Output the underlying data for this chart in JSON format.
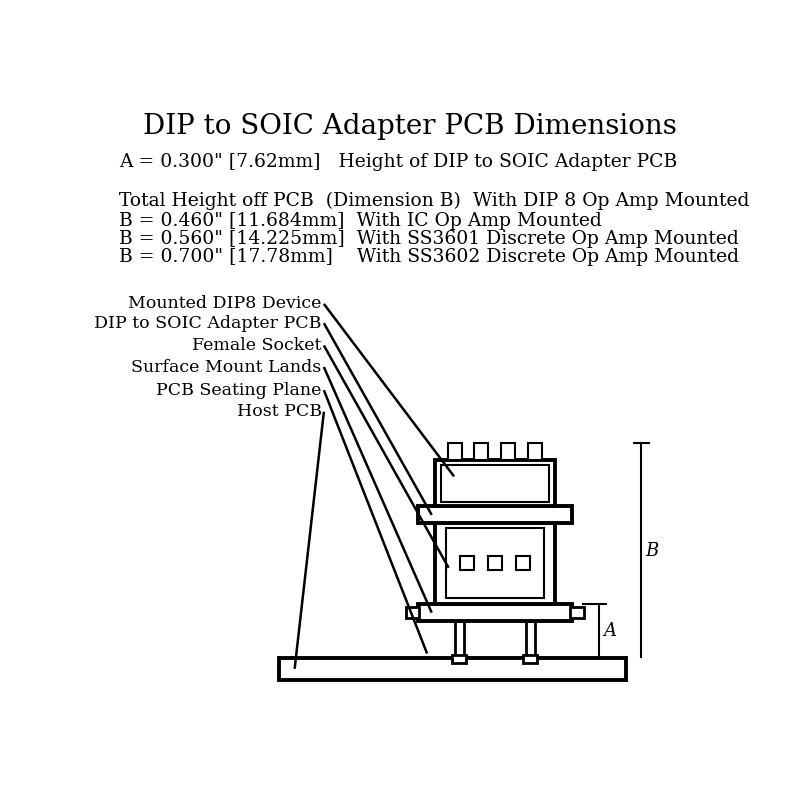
{
  "title": "DIP to SOIC Adapter PCB Dimensions",
  "title_fontsize": 20,
  "text_fontsize": 13.5,
  "label_fontsize": 12.5,
  "bg_color": "#ffffff",
  "line_color": "#000000",
  "text_color": "#000000",
  "dim_text_color": "#000000",
  "lines_text": [
    "A = 0.300\" [7.62mm]   Height of DIP to SOIC Adapter PCB",
    "Total Height off PCB  (Dimension B)  With DIP 8 Op Amp Mounted",
    "B = 0.460\" [11.684mm]  With IC Op Amp Mounted",
    "B = 0.560\" [14.225mm]  With SS3601 Discrete Op Amp Mounted",
    "B = 0.700\" [17.78mm]    With SS3602 Discrete Op Amp Mounted"
  ],
  "labels": [
    "Mounted DIP8 Device",
    "DIP to SOIC Adapter PCB",
    "Female Socket",
    "Surface Mount Lands",
    "PCB Seating Plane",
    "Host PCB"
  ]
}
